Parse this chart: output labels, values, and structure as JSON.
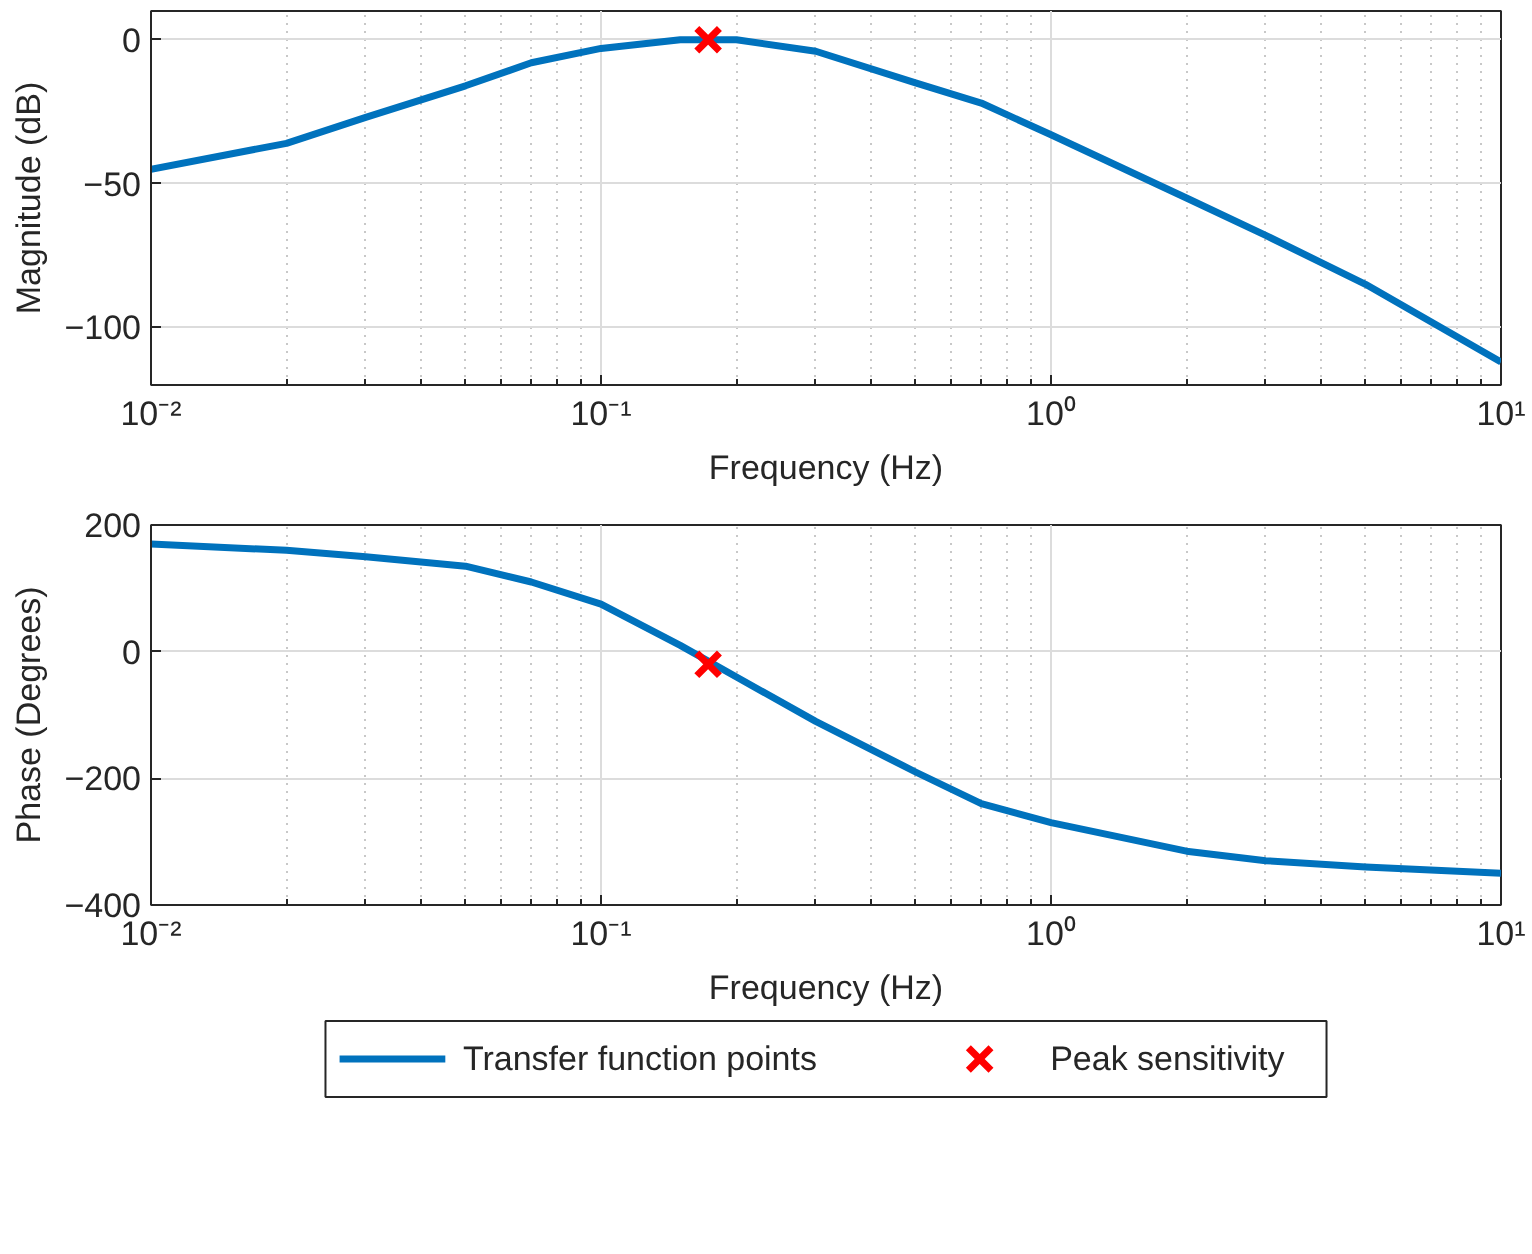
{
  "chart_data": [
    {
      "type": "line",
      "xlabel": "Frequency (Hz)",
      "ylabel": "Magnitude (dB)",
      "log": "x",
      "grid": true,
      "line_style": "solid",
      "xlim": [
        0.01,
        10
      ],
      "xticks": [
        {
          "value": 0.01,
          "label": "10⁻²"
        },
        {
          "value": 0.1,
          "label": "10⁻¹"
        },
        {
          "value": 1,
          "label": "10⁰"
        },
        {
          "value": 10,
          "label": "10¹"
        }
      ],
      "ylim": [
        -120,
        10
      ],
      "yticks": [
        -100,
        -50,
        0
      ],
      "series": [
        {
          "color": "#0072bd",
          "x": [
            0.01,
            0.02,
            0.03,
            0.05,
            0.07,
            0.1,
            0.15,
            0.2,
            0.3,
            0.5,
            0.7,
            1,
            2,
            3,
            5,
            10
          ],
          "values": [
            -45,
            -36,
            -27,
            -16,
            -8,
            -3,
            0,
            0,
            -4,
            -15,
            -22,
            -33,
            -55,
            -68,
            -85,
            -112
          ]
        },
        {
          "type": "scatter",
          "marker": "cross",
          "color": "#ff0000",
          "x": [
            0.173
          ],
          "values": [
            0
          ]
        }
      ]
    },
    {
      "type": "line",
      "xlabel": "Frequency (Hz)",
      "ylabel": "Phase (Degrees)",
      "log": "x",
      "grid": true,
      "legend": "bottom",
      "line_style": "solid",
      "xlim": [
        0.01,
        10
      ],
      "xticks": [
        {
          "value": 0.01,
          "label": "10⁻²"
        },
        {
          "value": 0.1,
          "label": "10⁻¹"
        },
        {
          "value": 1,
          "label": "10⁰"
        },
        {
          "value": 10,
          "label": "10¹"
        }
      ],
      "ylim": [
        -400,
        200
      ],
      "yticks": [
        -400,
        -200,
        0,
        200
      ],
      "series": [
        {
          "name": "Transfer function points",
          "color": "#0072bd",
          "x": [
            0.01,
            0.02,
            0.03,
            0.05,
            0.07,
            0.1,
            0.15,
            0.2,
            0.3,
            0.5,
            0.7,
            1,
            2,
            3,
            5,
            10
          ],
          "values": [
            170,
            160,
            150,
            135,
            110,
            75,
            10,
            -40,
            -110,
            -190,
            -240,
            -270,
            -315,
            -330,
            -340,
            -350
          ]
        },
        {
          "type": "scatter",
          "name": "Peak sensitivity",
          "marker": "cross",
          "color": "#ff0000",
          "x": [
            0.173
          ],
          "values": [
            -20
          ]
        }
      ]
    }
  ]
}
